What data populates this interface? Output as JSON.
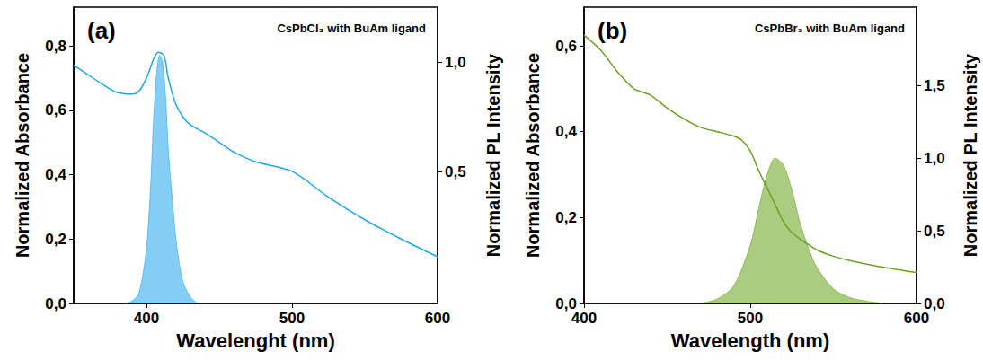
{
  "chart_data": [
    {
      "type": "line",
      "panel_label": "(a)",
      "title": "CsPbCl₃ with BuAm ligand",
      "x_label": "Wavelenght (nm)",
      "y_label": "Normalized Absorbance",
      "y2_label": "Normalized PL Intensity",
      "xlim": [
        350,
        600
      ],
      "xticks": [
        400,
        500,
        600
      ],
      "ylim": [
        0,
        0.92
      ],
      "yticks": [
        {
          "value": 0,
          "label": "0,0"
        },
        {
          "value": 0.2,
          "label": "0,2"
        },
        {
          "value": 0.4,
          "label": "0,4"
        },
        {
          "value": 0.6,
          "label": "0,6"
        },
        {
          "value": 0.8,
          "label": "0,8"
        }
      ],
      "y2lim": [
        -0.1,
        1.25
      ],
      "y2ticks": [
        {
          "value": 0.5,
          "label": "0,5"
        },
        {
          "value": 1.0,
          "label": "1,0"
        }
      ],
      "grid": false,
      "series": [
        {
          "type": "line",
          "color": "#1ea7ec",
          "x": [
            350,
            360,
            370,
            380,
            390,
            395,
            400,
            405,
            408,
            412,
            415,
            420,
            425,
            430,
            440,
            450,
            460,
            475,
            500,
            525,
            550,
            575,
            600
          ],
          "values": [
            0.74,
            0.71,
            0.68,
            0.655,
            0.65,
            0.66,
            0.7,
            0.76,
            0.78,
            0.77,
            0.7,
            0.62,
            0.58,
            0.555,
            0.53,
            0.5,
            0.47,
            0.44,
            0.41,
            0.33,
            0.26,
            0.2,
            0.145
          ]
        },
        {
          "type": "area",
          "color": "#5bbcf2",
          "axis": "y2",
          "x": [
            385,
            390,
            395,
            400,
            403,
            405,
            407,
            409,
            411,
            413,
            415,
            418,
            421,
            425,
            430,
            435
          ],
          "values": [
            -0.1,
            -0.09,
            -0.05,
            0.15,
            0.45,
            0.75,
            0.95,
            1.03,
            1.0,
            0.85,
            0.6,
            0.35,
            0.15,
            0.0,
            -0.07,
            -0.1
          ]
        }
      ]
    },
    {
      "type": "line",
      "panel_label": "(b)",
      "title": "CsPbBr₃ with BuAm ligand",
      "x_label": "Wavelength (nm)",
      "y_label": "Normalized Absorbance",
      "y2_label": "Normalized PL Intensity",
      "xlim": [
        400,
        600
      ],
      "xticks": [
        400,
        500,
        600
      ],
      "ylim": [
        0,
        0.69
      ],
      "yticks": [
        {
          "value": 0,
          "label": "0,0"
        },
        {
          "value": 0.2,
          "label": "0,2"
        },
        {
          "value": 0.4,
          "label": "0,4"
        },
        {
          "value": 0.6,
          "label": "0,6"
        }
      ],
      "y2lim": [
        0,
        2.04
      ],
      "y2ticks": [
        {
          "value": 0,
          "label": "0,0"
        },
        {
          "value": 0.5,
          "label": "0,5"
        },
        {
          "value": 1.0,
          "label": "1,0"
        },
        {
          "value": 1.5,
          "label": "1,5"
        }
      ],
      "grid": false,
      "series": [
        {
          "type": "line",
          "color": "#6aa121",
          "x": [
            400,
            410,
            420,
            430,
            440,
            450,
            460,
            470,
            480,
            490,
            495,
            500,
            505,
            510,
            515,
            520,
            525,
            530,
            540,
            550,
            560,
            575,
            600
          ],
          "values": [
            0.625,
            0.59,
            0.54,
            0.5,
            0.485,
            0.455,
            0.43,
            0.41,
            0.4,
            0.39,
            0.38,
            0.355,
            0.31,
            0.27,
            0.23,
            0.19,
            0.165,
            0.15,
            0.125,
            0.11,
            0.1,
            0.088,
            0.072
          ]
        },
        {
          "type": "area",
          "color": "#8dbb57",
          "axis": "y2",
          "x": [
            470,
            480,
            490,
            500,
            505,
            510,
            515,
            520,
            525,
            530,
            535,
            540,
            550,
            560,
            570,
            580
          ],
          "values": [
            0,
            0.03,
            0.12,
            0.4,
            0.65,
            0.88,
            1.0,
            0.95,
            0.78,
            0.55,
            0.38,
            0.25,
            0.1,
            0.04,
            0.015,
            0
          ]
        }
      ]
    }
  ]
}
